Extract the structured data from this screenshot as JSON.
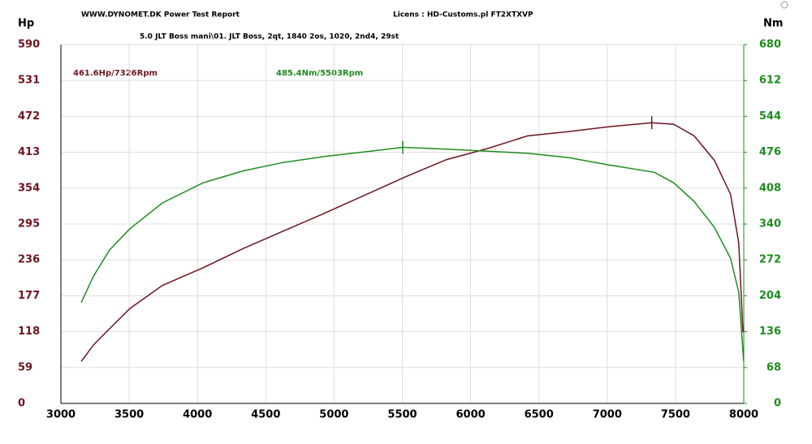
{
  "chart_data": {
    "type": "line",
    "title": "WWW.DYNOMET.DK  Power Test Report",
    "license": "Licens :  HD-Customs.pl  FT2XTXVP",
    "subtitle": "5.0 JLT Boss mani\\01. JLT Boss, 2qt, 1840 2os, 1020, 2nd4, 29st",
    "y_label": "Hp",
    "y2_label": "Nm",
    "annotations": [
      "461.6Hp/7326Rpm",
      "485.4Nm/5503Rpm"
    ],
    "xlim": [
      3000,
      8000
    ],
    "xticks": [
      3000,
      3500,
      4000,
      4500,
      5000,
      5500,
      6000,
      6500,
      7000,
      7500,
      8000
    ],
    "ylim": [
      0,
      590
    ],
    "yticks": [
      0,
      59,
      118,
      177,
      236,
      295,
      354,
      413,
      472,
      531,
      590
    ],
    "y2lim": [
      0,
      680
    ],
    "y2ticks": [
      0,
      68,
      136,
      204,
      272,
      340,
      408,
      476,
      544,
      612,
      680
    ],
    "grid": true,
    "series": [
      {
        "name": "Hp",
        "color": "#6e1420",
        "axis": "y",
        "x": [
          3149,
          3238,
          3357,
          3505,
          3743,
          4040,
          4338,
          4635,
          4932,
          5230,
          5527,
          5824,
          6121,
          6418,
          6716,
          7013,
          7326,
          7487,
          7636,
          7784,
          7903,
          7963,
          7994
        ],
        "values": [
          69,
          96,
          123,
          156,
          194,
          223,
          255,
          284,
          313,
          343,
          373,
          401,
          419,
          440,
          447,
          455,
          461.6,
          459,
          440,
          400,
          344,
          264,
          117
        ]
      },
      {
        "name": "Nm",
        "color": "#1e8c1e",
        "axis": "y2",
        "x": [
          3149,
          3238,
          3357,
          3505,
          3743,
          4040,
          4338,
          4635,
          4932,
          5230,
          5503,
          5824,
          6121,
          6418,
          6716,
          7013,
          7346,
          7487,
          7636,
          7784,
          7903,
          7963,
          7999
        ],
        "values": [
          191,
          241,
          291,
          331,
          380,
          418,
          441,
          457,
          468,
          477,
          485.4,
          482,
          478,
          474,
          466,
          452,
          438,
          418,
          383,
          334,
          275,
          211,
          80
        ]
      }
    ]
  }
}
